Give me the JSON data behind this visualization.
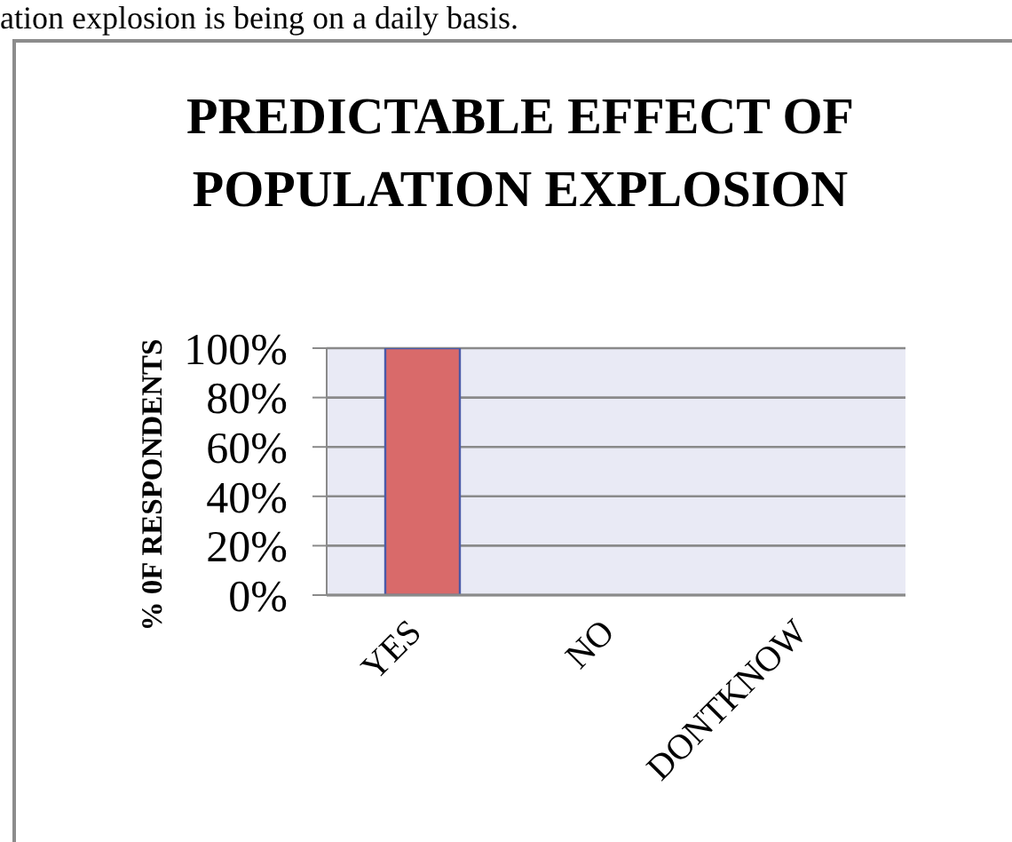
{
  "chart_data": {
    "type": "bar",
    "title": "PREDICTABLE EFFECT OF POPULATION EXPLOSION",
    "ylabel": "% 0F RESPONDENTS",
    "annotations": [
      "ation explosion is being on a daily basis."
    ],
    "categories": [
      "YES",
      "NO",
      "DONTKNOW"
    ],
    "values": [
      100,
      0,
      0
    ],
    "color": "#d96a6a",
    "ylim": [
      0,
      100
    ],
    "yticks": [
      {
        "value": 0,
        "label": "0%"
      },
      {
        "value": 20,
        "label": "20%"
      },
      {
        "value": 40,
        "label": "40%"
      },
      {
        "value": 60,
        "label": "60%"
      },
      {
        "value": 80,
        "label": "80%"
      },
      {
        "value": 100,
        "label": "100%"
      }
    ],
    "grid": "y"
  }
}
